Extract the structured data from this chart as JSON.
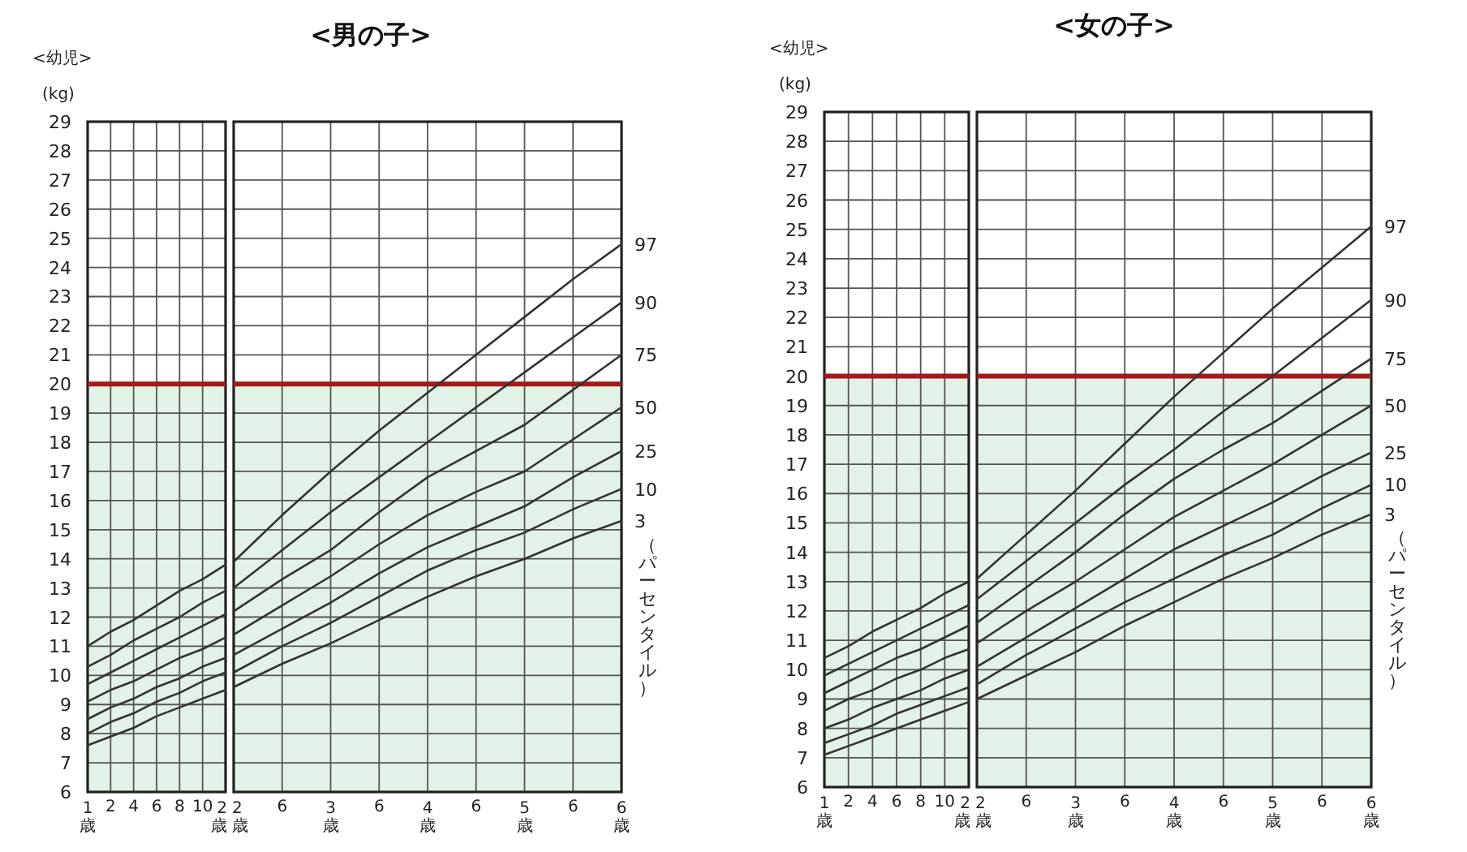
{
  "chart_data": [
    {
      "type": "line",
      "subtitle": "<幼児>",
      "ylabel": "(kg)",
      "grid": true,
      "ylim": [
        6,
        29
      ],
      "categories": [
        "1歳",
        "2",
        "4",
        "6",
        "8",
        "10",
        "2歳"
      ],
      "yticks": [
        6,
        7,
        8,
        9,
        10,
        11,
        12,
        13,
        14,
        15,
        16,
        17,
        18,
        19,
        20,
        21,
        22,
        23,
        24,
        25,
        26,
        27,
        28,
        29
      ],
      "series": [
        {
          "color": "#333333",
          "values": [
            11.0,
            11.5,
            11.9,
            12.4,
            12.9,
            13.3,
            13.8
          ]
        },
        {
          "color": "#333333",
          "values": [
            10.3,
            10.7,
            11.2,
            11.6,
            12.0,
            12.5,
            12.9
          ]
        },
        {
          "color": "#333333",
          "values": [
            9.7,
            10.1,
            10.5,
            10.9,
            11.3,
            11.7,
            12.1
          ]
        },
        {
          "color": "#333333",
          "values": [
            9.1,
            9.5,
            9.8,
            10.2,
            10.6,
            10.9,
            11.3
          ]
        },
        {
          "color": "#333333",
          "values": [
            8.5,
            8.9,
            9.2,
            9.6,
            9.9,
            10.3,
            10.6
          ]
        },
        {
          "color": "#333333",
          "values": [
            8.0,
            8.4,
            8.7,
            9.1,
            9.4,
            9.8,
            10.1
          ]
        },
        {
          "color": "#333333",
          "values": [
            7.6,
            7.9,
            8.2,
            8.6,
            8.9,
            9.2,
            9.5
          ]
        }
      ],
      "ref_lines": [
        {
          "axis": "y",
          "value": 20,
          "color": "#a31a1a"
        }
      ],
      "bands": [
        {
          "axis": "y",
          "from": 6,
          "to": 20,
          "color": "#e2f2e6"
        }
      ]
    },
    {
      "type": "line",
      "title": "<男の子>",
      "grid": true,
      "tick_labels": "x",
      "ylim": [
        6,
        29
      ],
      "categories": [
        "2歳",
        "6",
        "3歳",
        "6",
        "4歳",
        "6",
        "5歳",
        "6",
        "6歳"
      ],
      "yticks": [
        6,
        7,
        8,
        9,
        10,
        11,
        12,
        13,
        14,
        15,
        16,
        17,
        18,
        19,
        20,
        21,
        22,
        23,
        24,
        25,
        26,
        27,
        28,
        29
      ],
      "series": [
        {
          "name": "97",
          "color": "#333333",
          "values": [
            13.9,
            15.5,
            17.0,
            18.4,
            19.7,
            21.0,
            22.3,
            23.6,
            24.8
          ]
        },
        {
          "name": "90",
          "color": "#333333",
          "values": [
            13.0,
            14.3,
            15.6,
            16.8,
            18.0,
            19.2,
            20.4,
            21.6,
            22.8
          ]
        },
        {
          "name": "75",
          "color": "#333333",
          "values": [
            12.2,
            13.3,
            14.3,
            15.6,
            16.8,
            17.7,
            18.6,
            19.8,
            21.0
          ]
        },
        {
          "name": "50",
          "color": "#333333",
          "values": [
            11.4,
            12.4,
            13.4,
            14.5,
            15.5,
            16.3,
            17.0,
            18.1,
            19.2
          ]
        },
        {
          "name": "25",
          "color": "#333333",
          "values": [
            10.7,
            11.6,
            12.5,
            13.5,
            14.4,
            15.1,
            15.8,
            16.8,
            17.7
          ]
        },
        {
          "name": "10",
          "color": "#333333",
          "values": [
            10.1,
            11.0,
            11.8,
            12.7,
            13.6,
            14.3,
            14.9,
            15.7,
            16.4
          ]
        },
        {
          "name": "3",
          "color": "#333333",
          "values": [
            9.6,
            10.4,
            11.1,
            11.9,
            12.7,
            13.4,
            14.0,
            14.7,
            15.3
          ]
        }
      ],
      "annotations": [
        "（パーセンタイル）"
      ],
      "ref_lines": [
        {
          "axis": "y",
          "value": 20,
          "color": "#a31a1a"
        }
      ],
      "bands": [
        {
          "axis": "y",
          "from": 6,
          "to": 20,
          "color": "#e2f2e6"
        }
      ]
    },
    {
      "type": "line",
      "subtitle": "<幼児>",
      "ylabel": "(kg)",
      "grid": true,
      "ylim": [
        6,
        29
      ],
      "categories": [
        "1歳",
        "2",
        "4",
        "6",
        "8",
        "10",
        "2歳"
      ],
      "yticks": [
        6,
        7,
        8,
        9,
        10,
        11,
        12,
        13,
        14,
        15,
        16,
        17,
        18,
        19,
        20,
        21,
        22,
        23,
        24,
        25,
        26,
        27,
        28,
        29
      ],
      "series": [
        {
          "color": "#333333",
          "values": [
            10.4,
            10.8,
            11.3,
            11.7,
            12.1,
            12.6,
            13.0
          ]
        },
        {
          "color": "#333333",
          "values": [
            9.8,
            10.2,
            10.6,
            11.0,
            11.4,
            11.8,
            12.2
          ]
        },
        {
          "color": "#333333",
          "values": [
            9.2,
            9.6,
            10.0,
            10.4,
            10.7,
            11.1,
            11.5
          ]
        },
        {
          "color": "#333333",
          "values": [
            8.6,
            9.0,
            9.3,
            9.7,
            10.0,
            10.4,
            10.7
          ]
        },
        {
          "color": "#333333",
          "values": [
            8.0,
            8.3,
            8.7,
            9.0,
            9.3,
            9.7,
            10.0
          ]
        },
        {
          "color": "#333333",
          "values": [
            7.5,
            7.8,
            8.1,
            8.5,
            8.8,
            9.1,
            9.4
          ]
        },
        {
          "color": "#333333",
          "values": [
            7.1,
            7.4,
            7.7,
            8.0,
            8.3,
            8.6,
            8.9
          ]
        }
      ],
      "ref_lines": [
        {
          "axis": "y",
          "value": 20,
          "color": "#a31a1a"
        }
      ],
      "bands": [
        {
          "axis": "y",
          "from": 6,
          "to": 20,
          "color": "#e2f2e6"
        }
      ]
    },
    {
      "type": "line",
      "title": "<女の子>",
      "grid": true,
      "tick_labels": "x",
      "ylim": [
        6,
        29
      ],
      "categories": [
        "2歳",
        "6",
        "3歳",
        "6",
        "4歳",
        "6",
        "5歳",
        "6",
        "6歳"
      ],
      "yticks": [
        6,
        7,
        8,
        9,
        10,
        11,
        12,
        13,
        14,
        15,
        16,
        17,
        18,
        19,
        20,
        21,
        22,
        23,
        24,
        25,
        26,
        27,
        28,
        29
      ],
      "series": [
        {
          "name": "97",
          "color": "#333333",
          "values": [
            13.1,
            14.6,
            16.1,
            17.7,
            19.3,
            20.8,
            22.3,
            23.7,
            25.1
          ]
        },
        {
          "name": "90",
          "color": "#333333",
          "values": [
            12.4,
            13.7,
            15.0,
            16.3,
            17.5,
            18.8,
            20.0,
            21.3,
            22.6
          ]
        },
        {
          "name": "75",
          "color": "#333333",
          "values": [
            11.6,
            12.8,
            14.0,
            15.3,
            16.5,
            17.5,
            18.4,
            19.5,
            20.6
          ]
        },
        {
          "name": "50",
          "color": "#333333",
          "values": [
            10.9,
            12.0,
            13.0,
            14.1,
            15.2,
            16.1,
            17.0,
            18.0,
            19.0
          ]
        },
        {
          "name": "25",
          "color": "#333333",
          "values": [
            10.1,
            11.1,
            12.1,
            13.1,
            14.1,
            14.9,
            15.7,
            16.6,
            17.4
          ]
        },
        {
          "name": "10",
          "color": "#333333",
          "values": [
            9.5,
            10.5,
            11.4,
            12.3,
            13.1,
            13.9,
            14.6,
            15.5,
            16.3
          ]
        },
        {
          "name": "3",
          "color": "#333333",
          "values": [
            9.0,
            9.8,
            10.6,
            11.5,
            12.3,
            13.1,
            13.8,
            14.6,
            15.3
          ]
        }
      ],
      "annotations": [
        "（パーセンタイル）"
      ],
      "ref_lines": [
        {
          "axis": "y",
          "value": 20,
          "color": "#a31a1a"
        }
      ],
      "bands": [
        {
          "axis": "y",
          "from": 6,
          "to": 20,
          "color": "#e2f2e6"
        }
      ]
    }
  ]
}
